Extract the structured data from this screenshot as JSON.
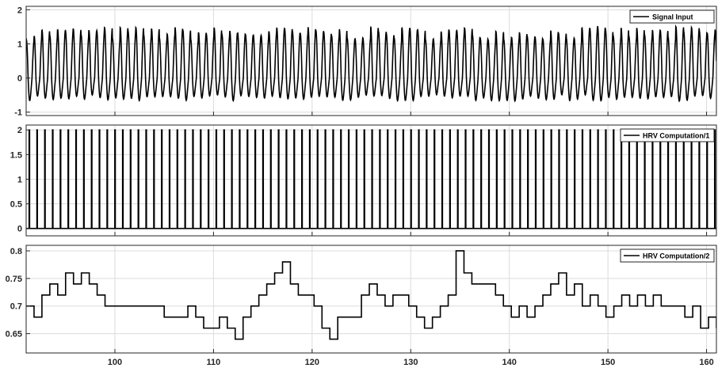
{
  "chart_data": [
    {
      "type": "line",
      "legend": "Signal Input",
      "legend_position": "top-right",
      "xlim": [
        91,
        161
      ],
      "ylim": [
        -1.1,
        2.1
      ],
      "yticks": [
        -1,
        0,
        1,
        2
      ],
      "yticklabels": [
        "-1",
        "0",
        "1",
        "2"
      ],
      "grid": true,
      "series": [
        {
          "name": "Signal Input",
          "color": "#000000",
          "description_values": {
            "beats_per_unit": 1.26,
            "peak_range": [
              1.1,
              1.5
            ],
            "trough_range": [
              -0.45,
              -0.65
            ]
          }
        }
      ]
    },
    {
      "type": "line",
      "legend": "HRV  Computation/1",
      "legend_position": "top-right",
      "xlim": [
        91,
        161
      ],
      "ylim": [
        -0.15,
        2.1
      ],
      "yticks": [
        0,
        0.5,
        1,
        1.5,
        2
      ],
      "yticklabels": [
        "0",
        "0.5",
        "1",
        "1.5",
        "2"
      ],
      "grid": true,
      "series": [
        {
          "name": "HRV  Computation/1",
          "color": "#000000",
          "pulse_height": 2,
          "pulse_start": 91.3,
          "pulse_period": 0.79
        }
      ]
    },
    {
      "type": "line",
      "legend": "HRV  Computation/2",
      "legend_position": "top-right",
      "xlim": [
        91,
        161
      ],
      "ylim": [
        0.615,
        0.81
      ],
      "yticks": [
        0.65,
        0.7,
        0.75,
        0.8
      ],
      "yticklabels": [
        "0.65",
        "0.7",
        "0.75",
        "0.8"
      ],
      "xticks": [
        100,
        110,
        120,
        130,
        140,
        150,
        160
      ],
      "xticklabels": [
        "100",
        "110",
        "120",
        "130",
        "140",
        "150",
        "160"
      ],
      "grid": true,
      "series": [
        {
          "name": "HRV  Computation/2",
          "color": "#000000",
          "step_x": [
            91,
            91.8,
            92.6,
            93.4,
            94.2,
            95.0,
            95.8,
            96.6,
            97.4,
            98.2,
            99.0,
            105.0,
            107.4,
            108.2,
            109.0,
            110.6,
            111.4,
            112.2,
            113.0,
            113.8,
            114.6,
            115.4,
            116.2,
            117.0,
            117.8,
            118.6,
            120.2,
            121.0,
            121.8,
            122.6,
            125.0,
            125.8,
            126.6,
            127.4,
            128.2,
            129.8,
            130.6,
            131.4,
            132.2,
            133.0,
            133.8,
            134.6,
            135.4,
            136.2,
            138.6,
            139.4,
            140.2,
            141.0,
            141.8,
            142.6,
            143.4,
            144.2,
            145.0,
            145.8,
            146.6,
            147.4,
            148.2,
            149.0,
            149.8,
            150.6,
            151.4,
            152.2,
            153.0,
            153.8,
            154.6,
            155.4,
            156.2,
            157.0,
            157.8,
            158.6,
            159.4,
            160.2,
            161
          ],
          "step_y": [
            0.7,
            0.68,
            0.72,
            0.74,
            0.72,
            0.76,
            0.74,
            0.76,
            0.74,
            0.72,
            0.7,
            0.68,
            0.7,
            0.68,
            0.66,
            0.68,
            0.66,
            0.64,
            0.68,
            0.7,
            0.72,
            0.74,
            0.76,
            0.78,
            0.74,
            0.72,
            0.7,
            0.66,
            0.64,
            0.68,
            0.72,
            0.74,
            0.72,
            0.7,
            0.72,
            0.7,
            0.68,
            0.66,
            0.68,
            0.7,
            0.72,
            0.8,
            0.76,
            0.74,
            0.72,
            0.7,
            0.68,
            0.7,
            0.68,
            0.7,
            0.72,
            0.74,
            0.76,
            0.72,
            0.74,
            0.7,
            0.72,
            0.7,
            0.68,
            0.7,
            0.72,
            0.7,
            0.72,
            0.7,
            0.72,
            0.7,
            0.7,
            0.7,
            0.68,
            0.7,
            0.66,
            0.68,
            0.66
          ]
        }
      ]
    }
  ]
}
